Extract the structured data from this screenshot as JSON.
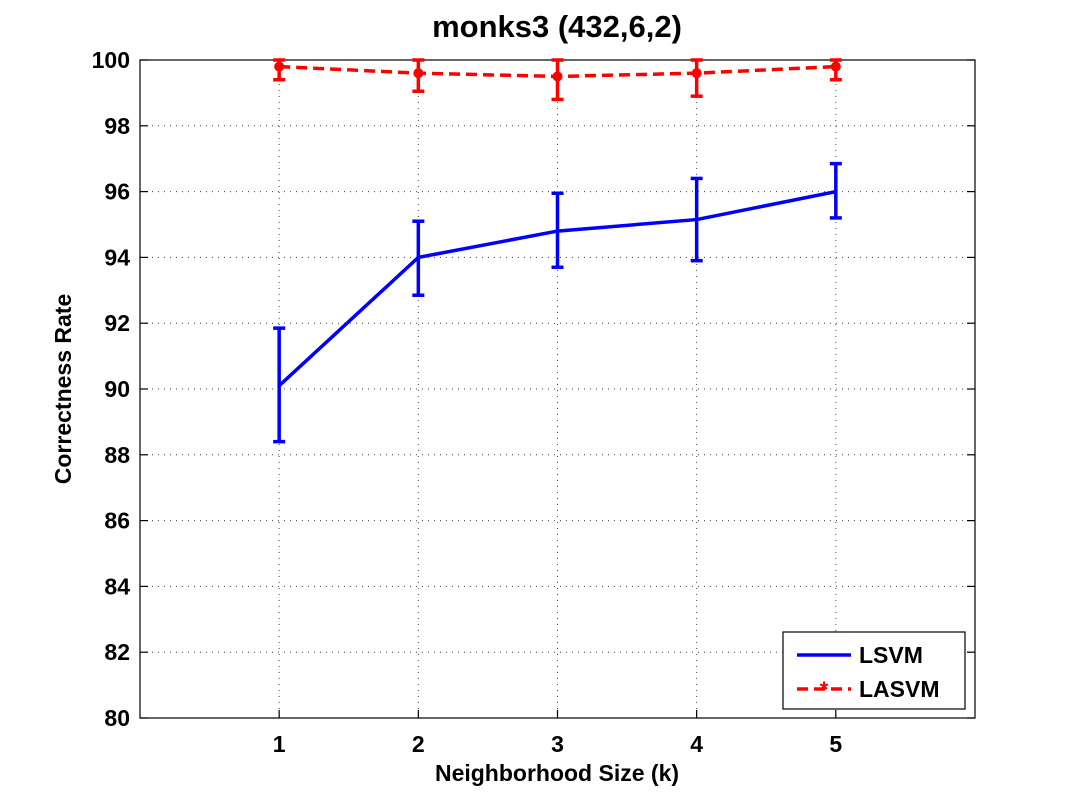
{
  "chart_data": {
    "type": "line",
    "title": "monks3 (432,6,2)",
    "xlabel": "Neighborhood Size (k)",
    "ylabel": "Correctness Rate",
    "x": [
      1,
      2,
      3,
      4,
      5
    ],
    "xlim": [
      0,
      6
    ],
    "ylim": [
      80,
      100
    ],
    "yticks": [
      80,
      82,
      84,
      86,
      88,
      90,
      92,
      94,
      96,
      98,
      100
    ],
    "xticks": [
      1,
      2,
      3,
      4,
      5
    ],
    "grid": true,
    "legend_position": "bottom-right",
    "series": [
      {
        "name": "LSVM",
        "values": [
          90.1,
          94.0,
          94.8,
          95.15,
          96.0
        ],
        "error_low": [
          88.4,
          92.85,
          93.7,
          93.9,
          95.2
        ],
        "error_high": [
          91.85,
          95.1,
          95.95,
          96.4,
          96.85
        ],
        "color": "#0000ff",
        "line_style": "solid",
        "marker": "none"
      },
      {
        "name": "LASVM",
        "values": [
          99.8,
          99.6,
          99.5,
          99.6,
          99.8
        ],
        "error_low": [
          99.4,
          99.05,
          98.8,
          98.9,
          99.4
        ],
        "error_high": [
          100.0,
          100.0,
          100.0,
          100.0,
          100.0
        ],
        "color": "#ff0000",
        "line_style": "dashed",
        "marker": "circle"
      }
    ]
  }
}
